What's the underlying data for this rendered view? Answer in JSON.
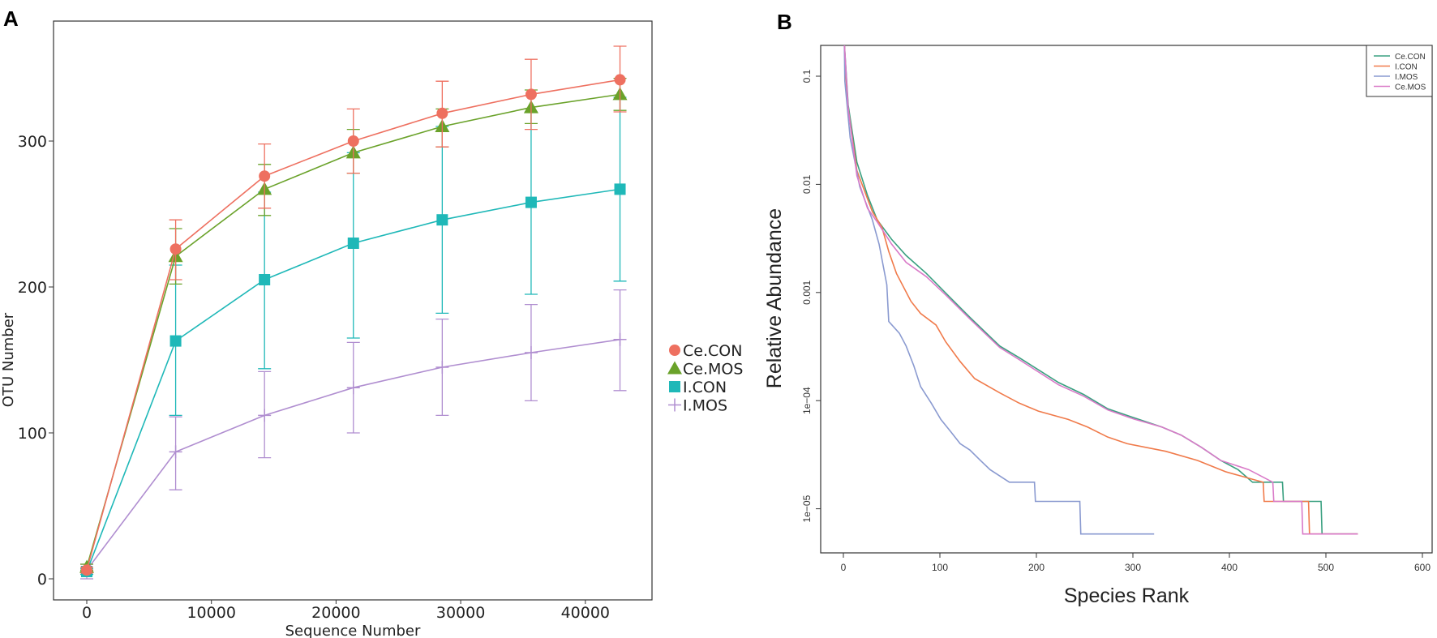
{
  "chart_data": [
    {
      "panel_label": "A",
      "type": "line",
      "title": "",
      "xlabel": "Sequence Number",
      "ylabel": "OTU Number",
      "xlim": [
        -2500,
        45000
      ],
      "ylim": [
        -12,
        383
      ],
      "x_ticks": [
        "0",
        "10000",
        "20000",
        "30000",
        "40000"
      ],
      "x_tick_values": [
        0,
        10000,
        20000,
        30000,
        40000
      ],
      "y_ticks": [
        "0",
        "100",
        "200",
        "300"
      ],
      "y_tick_values": [
        0,
        100,
        200,
        300
      ],
      "legend_placement": "right",
      "x": [
        0,
        7130,
        14260,
        21390,
        28520,
        35650,
        42780
      ],
      "series": [
        {
          "name": "Ce.CON",
          "marker": "circle",
          "color": "#ee7060",
          "values": [
            6,
            226,
            276,
            300,
            319,
            332,
            342
          ],
          "err_low": [
            4,
            205,
            254,
            278,
            296,
            308,
            320
          ],
          "err_high": [
            8,
            246,
            298,
            322,
            341,
            356,
            365
          ]
        },
        {
          "name": "Ce.MOS",
          "marker": "triangle",
          "color": "#6aa22a",
          "values": [
            8,
            221,
            267,
            292,
            310,
            323,
            332
          ],
          "err_low": [
            6,
            202,
            249,
            278,
            296,
            312,
            321
          ],
          "err_high": [
            10,
            240,
            284,
            308,
            322,
            335,
            343
          ]
        },
        {
          "name": "I.CON",
          "marker": "square",
          "color": "#1fb8b8",
          "values": [
            5,
            163,
            205,
            230,
            246,
            258,
            267
          ],
          "err_low": [
            3,
            112,
            144,
            165,
            182,
            195,
            204
          ],
          "err_high": [
            7,
            215,
            265,
            292,
            310,
            320,
            330
          ]
        },
        {
          "name": "I.MOS",
          "marker": "plus",
          "color": "#b08ed0",
          "values": [
            6,
            87,
            112,
            131,
            145,
            155,
            164
          ],
          "err_low": [
            0,
            61,
            83,
            100,
            112,
            122,
            129
          ],
          "err_high": [
            10,
            111,
            142,
            162,
            178,
            188,
            198
          ]
        }
      ]
    },
    {
      "panel_label": "B",
      "type": "line",
      "title": "",
      "xlabel": "Species Rank",
      "ylabel": "Relative Abundance",
      "y_scale": "log",
      "xlim": [
        -23,
        603
      ],
      "ylim": [
        4.5e-06,
        0.19
      ],
      "x_ticks": [
        "0",
        "100",
        "200",
        "300",
        "400",
        "500",
        "600"
      ],
      "x_tick_values": [
        0,
        100,
        200,
        300,
        400,
        500,
        600
      ],
      "y_ticks": [
        "0.1",
        "0.01",
        "0.001",
        "1e−04",
        "1e−05"
      ],
      "y_tick_values": [
        0.1,
        0.01,
        0.001,
        0.0001,
        1e-05
      ],
      "legend_placement": "top-right",
      "series": [
        {
          "name": "Ce.CON",
          "color": "#3aa080",
          "points": [
            [
              1,
              0.2
            ],
            [
              5,
              0.054
            ],
            [
              14,
              0.016
            ],
            [
              25,
              0.0079
            ],
            [
              35,
              0.0047
            ],
            [
              50,
              0.0031
            ],
            [
              65,
              0.0022
            ],
            [
              86,
              0.0015
            ],
            [
              106,
              0.00099
            ],
            [
              131,
              0.00059
            ],
            [
              162,
              0.00032
            ],
            [
              182,
              0.00025
            ],
            [
              223,
              0.000147
            ],
            [
              249,
              0.000114
            ],
            [
              274,
              8.4e-05
            ],
            [
              300,
              7e-05
            ],
            [
              330,
              5.7e-05
            ],
            [
              350,
              4.8e-05
            ],
            [
              371,
              3.7e-05
            ],
            [
              391,
              2.8e-05
            ],
            [
              409,
              2.3e-05
            ],
            [
              424,
              1.76e-05
            ],
            [
              455,
              1.76e-05
            ],
            [
              456,
              1.17e-05
            ],
            [
              495,
              1.17e-05
            ],
            [
              496,
              5.85e-06
            ],
            [
              533,
              5.85e-06
            ]
          ]
        },
        {
          "name": "I.CON",
          "color": "#f07a4a",
          "points": [
            [
              1,
              0.2
            ],
            [
              4,
              0.058
            ],
            [
              14,
              0.0134
            ],
            [
              30,
              0.0056
            ],
            [
              40,
              0.004
            ],
            [
              47,
              0.0024
            ],
            [
              55,
              0.0015
            ],
            [
              70,
              0.00083
            ],
            [
              80,
              0.00064
            ],
            [
              96,
              0.0005
            ],
            [
              106,
              0.00035
            ],
            [
              121,
              0.00023
            ],
            [
              136,
              0.00016
            ],
            [
              162,
              0.000118
            ],
            [
              182,
              9.5e-05
            ],
            [
              202,
              8e-05
            ],
            [
              233,
              6.7e-05
            ],
            [
              253,
              5.7e-05
            ],
            [
              274,
              4.6e-05
            ],
            [
              294,
              4e-05
            ],
            [
              334,
              3.4e-05
            ],
            [
              367,
              2.8e-05
            ],
            [
              396,
              2.2e-05
            ],
            [
              435,
              1.76e-05
            ],
            [
              436,
              1.17e-05
            ],
            [
              482,
              1.17e-05
            ],
            [
              483,
              5.85e-06
            ],
            [
              533,
              5.85e-06
            ]
          ]
        },
        {
          "name": "I.MOS",
          "color": "#8a9ad0",
          "points": [
            [
              1,
              0.2
            ],
            [
              1.5,
              0.09
            ],
            [
              7,
              0.027
            ],
            [
              17,
              0.0095
            ],
            [
              30,
              0.0047
            ],
            [
              37,
              0.0028
            ],
            [
              45,
              0.00118
            ],
            [
              47,
              0.00054
            ],
            [
              58,
              0.00042
            ],
            [
              65,
              0.00032
            ],
            [
              73,
              0.00021
            ],
            [
              80,
              0.000135
            ],
            [
              91,
              9.5e-05
            ],
            [
              101,
              6.7e-05
            ],
            [
              111,
              5.2e-05
            ],
            [
              121,
              4e-05
            ],
            [
              131,
              3.5e-05
            ],
            [
              142,
              2.8e-05
            ],
            [
              152,
              2.3e-05
            ],
            [
              172,
              1.76e-05
            ],
            [
              198,
              1.76e-05
            ],
            [
              199,
              1.17e-05
            ],
            [
              245,
              1.17e-05
            ],
            [
              246,
              5.85e-06
            ],
            [
              322,
              5.85e-06
            ]
          ]
        },
        {
          "name": "Ce.MOS",
          "color": "#d97ac8",
          "points": [
            [
              1,
              0.2
            ],
            [
              5,
              0.05
            ],
            [
              14,
              0.012
            ],
            [
              25,
              0.006
            ],
            [
              35,
              0.0045
            ],
            [
              50,
              0.0028
            ],
            [
              65,
              0.0019
            ],
            [
              86,
              0.0014
            ],
            [
              106,
              0.00095
            ],
            [
              131,
              0.00057
            ],
            [
              162,
              0.00031
            ],
            [
              182,
              0.00024
            ],
            [
              223,
              0.00014
            ],
            [
              249,
              0.00011
            ],
            [
              274,
              8.2e-05
            ],
            [
              300,
              6.8e-05
            ],
            [
              330,
              5.7e-05
            ],
            [
              350,
              4.8e-05
            ],
            [
              371,
              3.7e-05
            ],
            [
              391,
              2.8e-05
            ],
            [
              420,
              2.3e-05
            ],
            [
              445,
              1.76e-05
            ],
            [
              446,
              1.17e-05
            ],
            [
              475,
              1.17e-05
            ],
            [
              476,
              5.85e-06
            ],
            [
              533,
              5.85e-06
            ]
          ]
        }
      ]
    }
  ]
}
